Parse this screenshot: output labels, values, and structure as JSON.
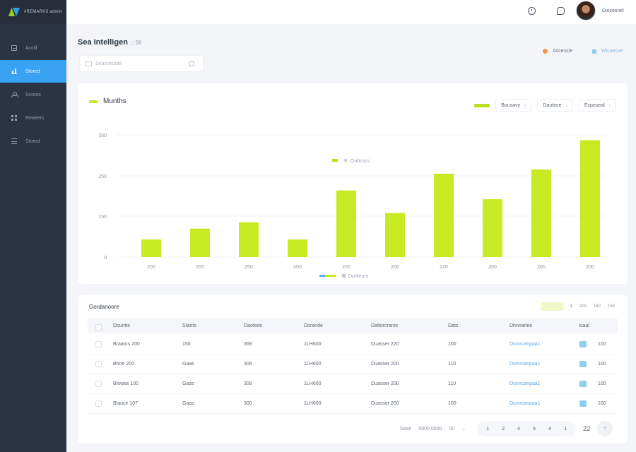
{
  "app": {
    "logo_text": "#REMARKS admin",
    "page_title": "Sea Intelligen",
    "page_subtitle": ":: 98"
  },
  "sidebar": {
    "items": [
      {
        "label": "Acclif",
        "icon": "document-icon",
        "active": false
      },
      {
        "label": "Stored",
        "icon": "bar-chart-icon",
        "active": true
      },
      {
        "label": "Scores",
        "icon": "person-icon",
        "active": false
      },
      {
        "label": "Reaeers",
        "icon": "grid-icon",
        "active": false
      },
      {
        "label": "Stored",
        "icon": "list-icon",
        "active": false
      }
    ]
  },
  "header": {
    "icons": [
      "clock-icon",
      "chat-icon"
    ],
    "username": "Diozesnel"
  },
  "search": {
    "placeholder": "Searchcode"
  },
  "top_legend": [
    {
      "label": "Ascessie",
      "color": "#f0994a",
      "shape": "dot"
    },
    {
      "label": "Wlcaecve",
      "color": "#8ecaf2",
      "shape": "square"
    }
  ],
  "chart_card": {
    "title": "Munths",
    "controls": [
      "Bousavy",
      "Dautoce",
      "Exposeal"
    ],
    "inner_legend": "Ordrrocs",
    "bottom_legend": "Durkeurs"
  },
  "chart_data": {
    "type": "bar",
    "title": "Munths",
    "categories": [
      "200",
      "200",
      "250",
      "200",
      "200",
      "200",
      "220",
      "200",
      "200",
      "200"
    ],
    "values": [
      42,
      68,
      83,
      42,
      159,
      105,
      199,
      138,
      209,
      279
    ],
    "yticks": [
      "0",
      "150",
      "250",
      "350"
    ],
    "ylim": [
      0,
      300
    ],
    "color": "#c8ea22",
    "grid": true
  },
  "table": {
    "title": "Gordanoore",
    "tools": [
      "4",
      "200",
      "160",
      "168"
    ],
    "columns": [
      "Dountie",
      "Stants",
      "Daotsee",
      "Dorande",
      "Dattercranie",
      "Dats",
      "Dhnnariee",
      "Isaal"
    ],
    "rows": [
      [
        "Braams 200",
        "150",
        "368",
        "1LH600",
        "Duasser 220",
        "100",
        "Dunncanpaa1",
        "100"
      ],
      [
        "Bhoe 200",
        "Gaas",
        "308",
        "1LH600",
        "Duasser 200",
        "110",
        "Dunncanpaa1",
        "100"
      ],
      [
        "Blowse 100",
        "Gaas",
        "308",
        "1LH600",
        "Duasser 200",
        "110",
        "Dunncanpaa1",
        "100"
      ],
      [
        "Blauce 107",
        "Gaas",
        "300",
        "1LH600",
        "Duasser 200",
        "100",
        "Dunncanpaa1",
        "100"
      ]
    ]
  },
  "pagination": {
    "label": "Sean",
    "range": "0000 0000",
    "per_page": "00",
    "pages": [
      "1",
      "2",
      "4",
      "6",
      "4",
      "1"
    ],
    "total": "22"
  }
}
